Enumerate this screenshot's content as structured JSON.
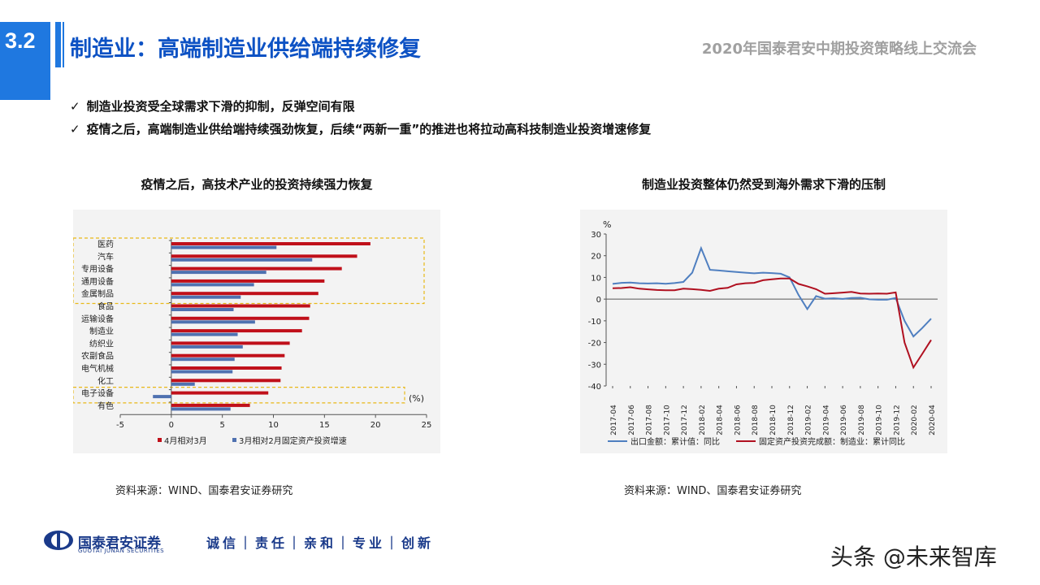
{
  "header": {
    "section_number": "3.2",
    "title": "制造业：高端制造业供给端持续修复",
    "event": "2020年国泰君安中期投资策略线上交流会"
  },
  "bullets": [
    "制造业投资受全球需求下滑的抑制，反弹空间有限",
    "疫情之后，高端制造业供给端持续强劲恢复，后续“两新一重”的推进也将拉动高科技制造业投资增速修复"
  ],
  "footer": {
    "brand": "国泰君安证券",
    "brand_en": "GUOTAI JUNAN SECURITIES",
    "motto": "诚信｜责任｜亲和｜专业｜创新",
    "watermark": "头条 @未来智库"
  },
  "chart_data": [
    {
      "type": "bar",
      "orientation": "horizontal",
      "title": "疫情之后，高技术产业的投资持续强力恢复",
      "categories": [
        "医药",
        "汽车",
        "专用设备",
        "通用设备",
        "金属制品",
        "食品",
        "运输设备",
        "制造业",
        "纺织业",
        "农副食品",
        "电气机械",
        "化工",
        "电子设备",
        "有色"
      ],
      "series": [
        {
          "name": "4月相对3月",
          "color": "#c0101a",
          "values": [
            19.5,
            18.2,
            16.7,
            15.0,
            14.4,
            13.6,
            13.5,
            12.8,
            11.6,
            11.1,
            10.8,
            10.7,
            9.5,
            7.7
          ]
        },
        {
          "name": "3月相对2月固定资产投资增速",
          "color": "#4f71b0",
          "values": [
            10.3,
            13.8,
            9.3,
            8.1,
            6.8,
            6.1,
            8.2,
            6.5,
            7.0,
            6.2,
            6.0,
            2.3,
            -1.8,
            5.8
          ]
        }
      ],
      "xlim": [
        -5,
        25
      ],
      "xticks": [
        -5,
        0,
        5,
        10,
        15,
        20,
        25
      ],
      "unit_label": "(%)",
      "highlighted_groups": [
        [
          "医药",
          "金属制品"
        ],
        [
          "电子设备"
        ]
      ],
      "source": "资料来源：WIND、国泰君安证券研究"
    },
    {
      "type": "line",
      "title": "制造业投资整体仍然受到海外需求下滑的压制",
      "ylabel": "%",
      "ylim": [
        -40,
        30
      ],
      "yticks": [
        30,
        20,
        10,
        0,
        -10,
        -20,
        -30,
        -40
      ],
      "x_ticks": [
        "2017-04",
        "2017-06",
        "2017-08",
        "2017-10",
        "2017-12",
        "2018-02",
        "2018-04",
        "2018-06",
        "2018-08",
        "2018-10",
        "2018-12",
        "2019-02",
        "2019-04",
        "2019-06",
        "2019-08",
        "2019-10",
        "2019-12",
        "2020-02",
        "2020-04"
      ],
      "x": [
        "2017-04",
        "2017-05",
        "2017-06",
        "2017-07",
        "2017-08",
        "2017-09",
        "2017-10",
        "2017-11",
        "2017-12",
        "2018-01",
        "2018-02",
        "2018-03",
        "2018-04",
        "2018-05",
        "2018-06",
        "2018-07",
        "2018-08",
        "2018-09",
        "2018-10",
        "2018-11",
        "2018-12",
        "2019-01",
        "2019-02",
        "2019-03",
        "2019-04",
        "2019-05",
        "2019-06",
        "2019-07",
        "2019-08",
        "2019-09",
        "2019-10",
        "2019-11",
        "2019-12",
        "2020-01",
        "2020-02",
        "2020-03",
        "2020-04"
      ],
      "series": [
        {
          "name": "出口金额：累计值：同比",
          "color": "#4f7fc0",
          "values": [
            7.0,
            7.5,
            7.6,
            7.3,
            7.2,
            7.3,
            7.1,
            7.4,
            7.9,
            12.2,
            23.5,
            13.5,
            13.2,
            12.8,
            12.5,
            12.2,
            11.9,
            12.2,
            12.0,
            11.7,
            10.0,
            2.0,
            -4.6,
            1.4,
            0.2,
            0.4,
            0.1,
            0.5,
            0.6,
            -0.1,
            -0.3,
            -0.3,
            0.5,
            -10.0,
            -17.2,
            -13.3,
            -9.0
          ]
        },
        {
          "name": "固定资产投资完成额：制造业：累计同比",
          "color": "#b01020",
          "values": [
            5.0,
            5.1,
            5.5,
            4.8,
            4.5,
            4.2,
            4.1,
            4.1,
            4.8,
            4.6,
            4.3,
            3.8,
            4.8,
            5.2,
            6.8,
            7.3,
            7.5,
            8.7,
            9.1,
            9.5,
            9.5,
            7.0,
            5.9,
            4.6,
            2.5,
            2.7,
            3.0,
            3.3,
            2.6,
            2.5,
            2.6,
            2.5,
            3.1,
            -20.0,
            -31.5,
            -25.2,
            -18.8
          ]
        }
      ],
      "source": "资料来源：WIND、国泰君安证券研究"
    }
  ]
}
